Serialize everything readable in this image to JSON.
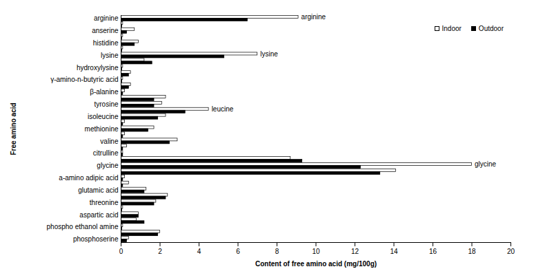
{
  "chart_data": {
    "type": "bar",
    "orientation": "horizontal",
    "x_label": "Content of free amino acid (mg/100g)",
    "y_label": "Free amino acid",
    "categories": [
      "arginine",
      null,
      "anserine",
      null,
      "histidine",
      null,
      "lysine",
      null,
      "hydroxylysine",
      null,
      "γ-amino-n-butyric acid",
      null,
      "β-alanine",
      null,
      "tyrosine",
      null,
      "isoleucine",
      null,
      "methionine",
      null,
      "valine",
      null,
      "citrulline",
      null,
      "glycine",
      null,
      "a-amino adipic acid",
      null,
      "glutamic acid",
      null,
      "threonine",
      null,
      "aspartic acid",
      null,
      "phospho ethanol amine",
      null,
      "phosphoserine"
    ],
    "series": [
      {
        "name": "Indoor",
        "color": "#ffffff",
        "values": [
          9.1,
          0.1,
          0.7,
          0.1,
          0.9,
          0.1,
          7.0,
          1.2,
          0.1,
          0.5,
          0.1,
          0.5,
          0.2,
          2.3,
          2.1,
          4.5,
          2.3,
          0.2,
          1.7,
          0.2,
          2.9,
          0.3,
          0.1,
          8.7,
          18.0,
          14.1,
          0.2,
          0.4,
          1.3,
          2.4,
          1.8,
          0.1,
          0.9,
          0.8,
          0.1,
          2.0,
          0.4
        ]
      },
      {
        "name": "Outdoor",
        "color": "#000000",
        "values": [
          6.5,
          0.05,
          0.3,
          0.05,
          0.7,
          0.05,
          5.3,
          1.6,
          0.05,
          0.4,
          0.05,
          0.4,
          0.1,
          1.7,
          1.7,
          3.3,
          1.9,
          0.1,
          1.4,
          0.1,
          2.5,
          0.1,
          0.1,
          9.3,
          12.3,
          13.3,
          0.1,
          0.1,
          1.2,
          2.3,
          1.7,
          0.05,
          0.9,
          1.2,
          0.05,
          1.9,
          0.3
        ]
      }
    ],
    "annotations": [
      {
        "text": "arginine",
        "x": 9.1,
        "index": 0
      },
      {
        "text": "lysine",
        "x": 7.0,
        "index": 6
      },
      {
        "text": "leucine",
        "x": 4.5,
        "index": 15
      },
      {
        "text": "glycine",
        "x": 18.0,
        "index": 24
      }
    ],
    "xlim": [
      0,
      20
    ],
    "xticks": [
      0,
      2,
      4,
      6,
      8,
      10,
      12,
      14,
      16,
      18,
      20
    ],
    "grid": false,
    "legend": "top-right"
  }
}
